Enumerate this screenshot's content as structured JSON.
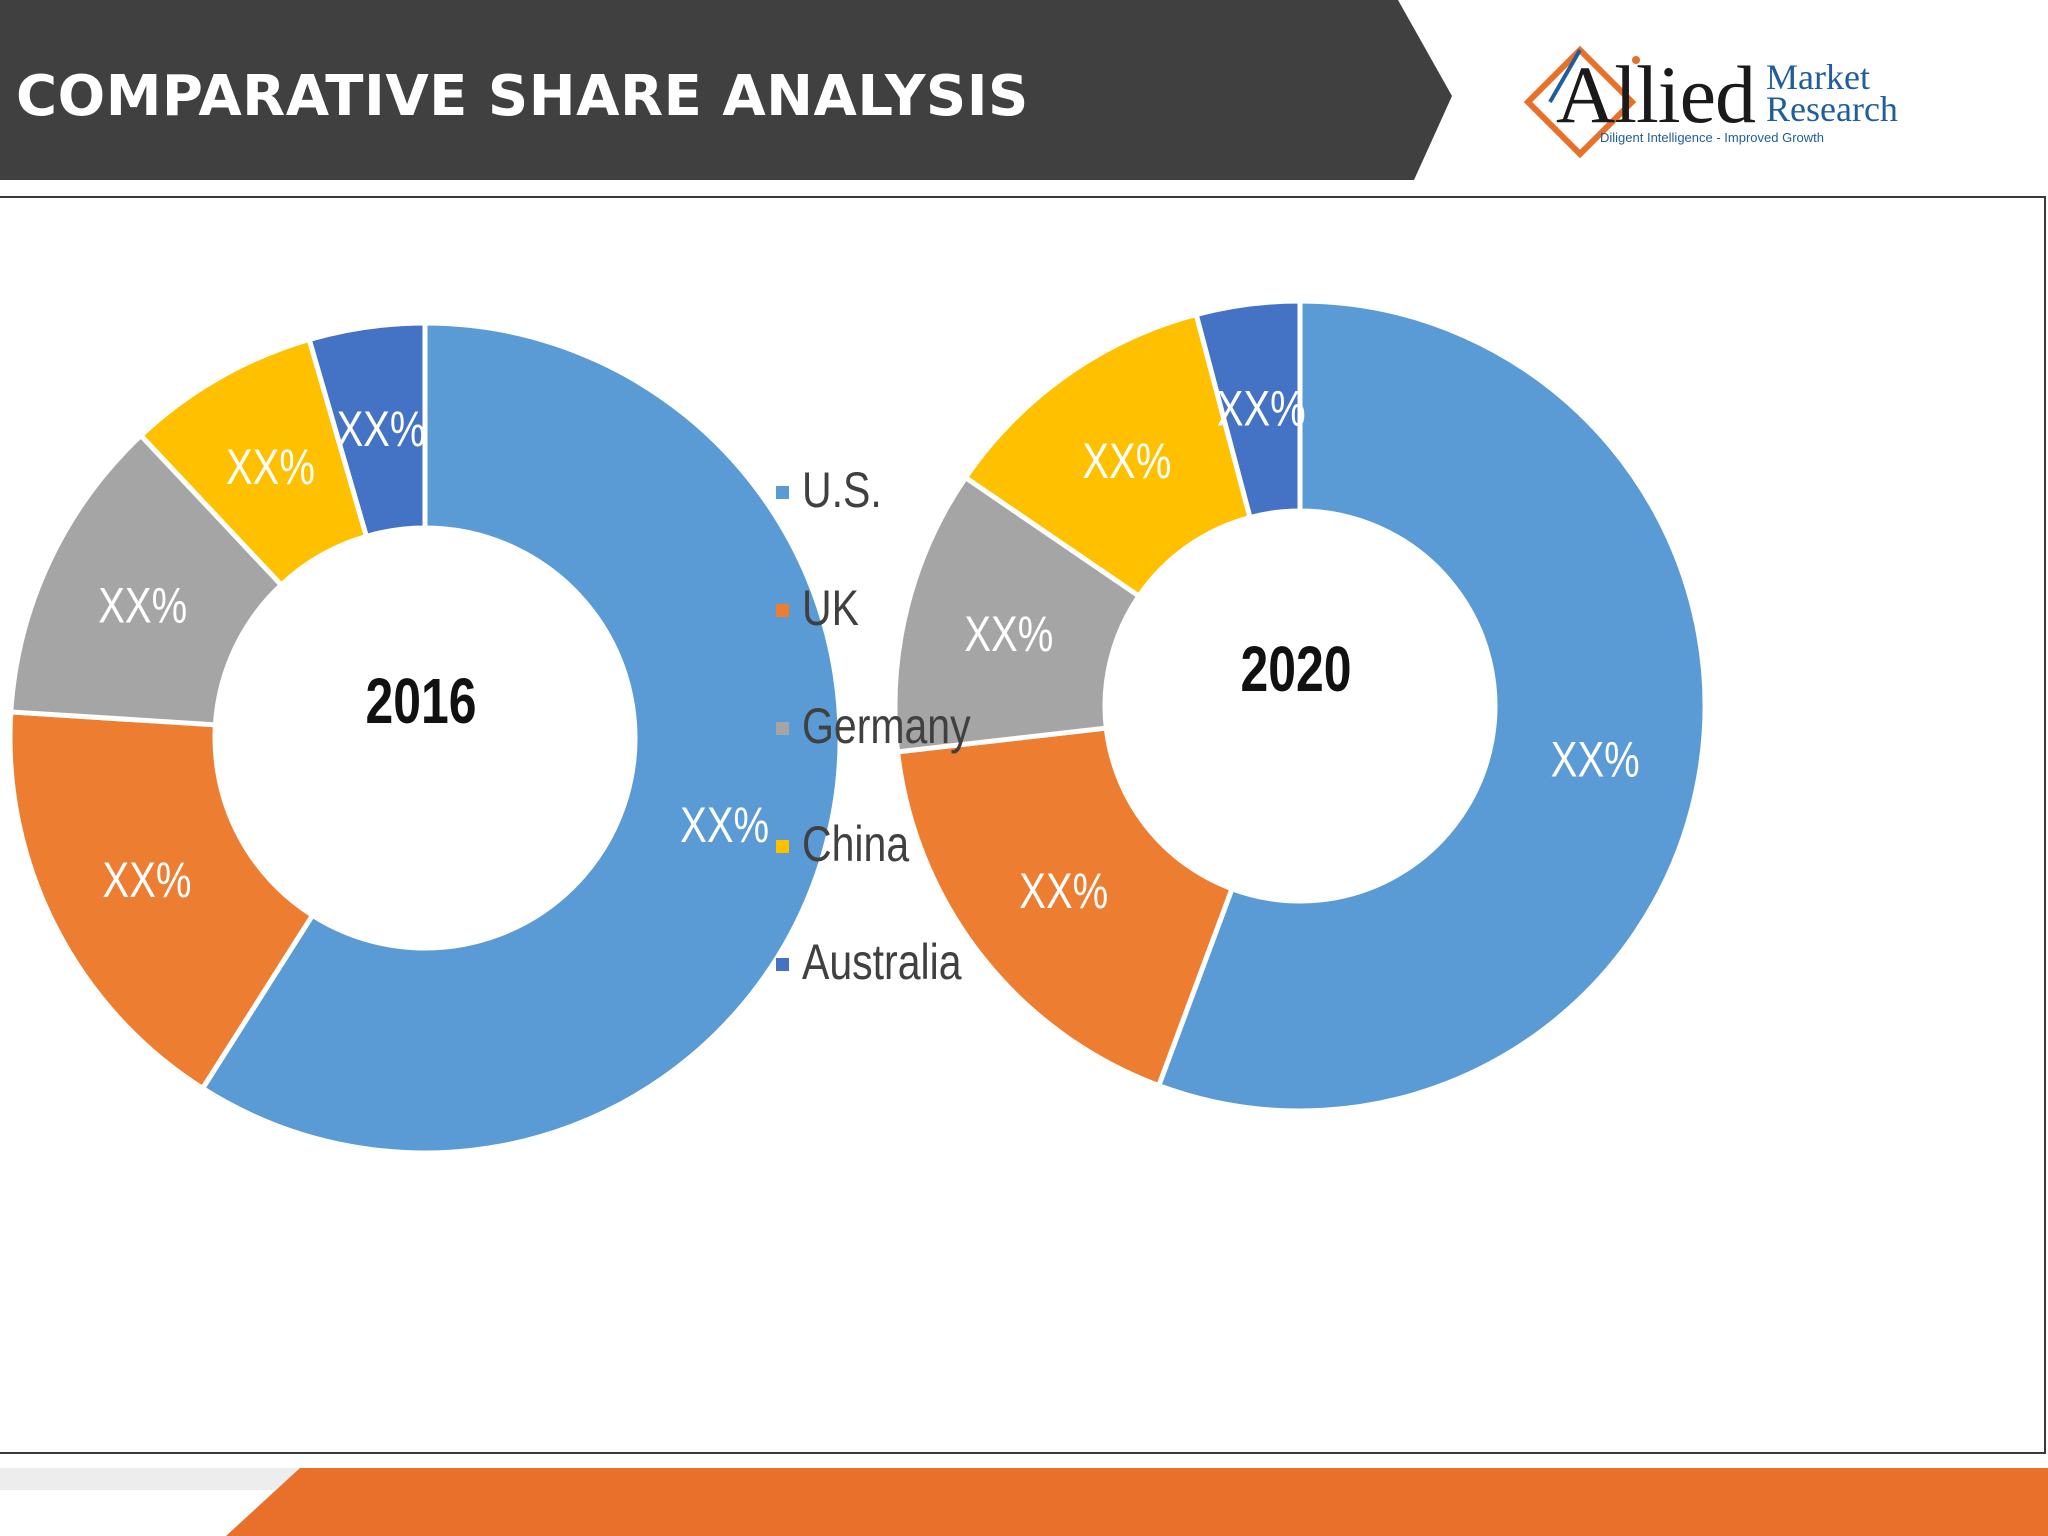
{
  "header": {
    "title": "COMPARATIVE SHARE ANALYSIS",
    "background_color": "#404040"
  },
  "logo": {
    "name": "Allied",
    "market": "Market",
    "research": "Research",
    "tagline": "Diligent Intelligence - Improved Growth"
  },
  "footer": {
    "accent_color": "#e8702a"
  },
  "chart_data": [
    {
      "type": "donut",
      "center_label": "2016",
      "categories": [
        "U.S.",
        "UK",
        "Germany",
        "China",
        "Australia"
      ],
      "values": [
        59,
        17,
        12,
        7.5,
        4.5
      ],
      "data_labels": [
        "XX%",
        "XX%",
        "XX%",
        "XX%",
        "XX%"
      ],
      "colors": [
        "#5b9bd5",
        "#ed7d31",
        "#a5a5a5",
        "#ffc000",
        "#4472c4"
      ]
    },
    {
      "type": "donut",
      "center_label": "2020",
      "categories": [
        "U.S.",
        "UK",
        "Germany",
        "China",
        "Australia"
      ],
      "values": [
        54,
        17,
        11,
        11,
        4
      ],
      "data_labels": [
        "XX%",
        "XX%",
        "XX%",
        "XX%",
        "XX%"
      ],
      "colors": [
        "#5b9bd5",
        "#ed7d31",
        "#a5a5a5",
        "#ffc000",
        "#4472c4"
      ]
    }
  ],
  "legend": {
    "items": [
      {
        "label": "U.S.",
        "color": "#5b9bd5"
      },
      {
        "label": "UK",
        "color": "#ed7d31"
      },
      {
        "label": "Germany",
        "color": "#a5a5a5"
      },
      {
        "label": "China",
        "color": "#ffc000"
      },
      {
        "label": "Australia",
        "color": "#4472c4"
      }
    ]
  }
}
